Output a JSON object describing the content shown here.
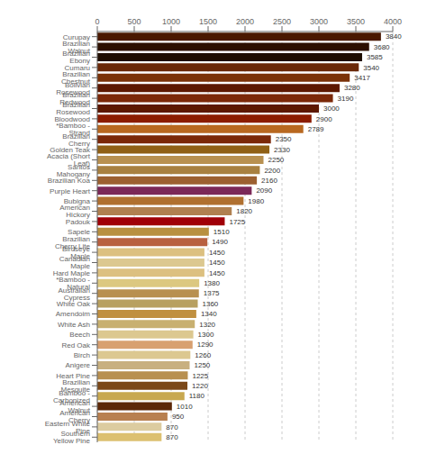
{
  "chart_data": {
    "type": "bar",
    "orientation": "horizontal",
    "categories": [
      "Curupay",
      "Brazilian Walnut",
      "Brazilian Ebony",
      "Cumaru",
      "Brazilian Chestnut",
      "Bolivian Rosewood",
      "Brazilian Redwood",
      "Brazilian Rosewood",
      "Bloodwood",
      "*Bamboo - Strand",
      "Brazilian Cherry",
      "Golden Teak",
      "Acacia (Short Leaf)",
      "Santos Mahogany",
      "Brazilian Koa",
      "Purple Heart",
      "Bubigna",
      "American Hickory",
      "Padouk",
      "Sapele",
      "Brazilian Cherry Lite",
      "Birdseye Maple",
      "Canadian Maple",
      "Hard Maple",
      "*Bamboo - Natural",
      "Australian Cypress",
      "White Oak",
      "Amendoim",
      "White Ash",
      "Beech",
      "Red Oak",
      "Birch",
      "Anigere",
      "Heart Pine",
      "Brazilian Mesquite",
      "Bamboo - Carbonized",
      "American Walnut",
      "American Cherry",
      "Eastern White Pine",
      "Southern Yellow Pine"
    ],
    "values": [
      3840,
      3680,
      3585,
      3540,
      3417,
      3280,
      3190,
      3000,
      2900,
      2789,
      2350,
      2330,
      2250,
      2200,
      2160,
      2090,
      1980,
      1820,
      1725,
      1510,
      1490,
      1450,
      1450,
      1450,
      1380,
      1375,
      1360,
      1340,
      1320,
      1300,
      1290,
      1260,
      1250,
      1225,
      1220,
      1180,
      1010,
      950,
      870,
      870
    ],
    "colors": [
      "#4a1800",
      "#2d1000",
      "#1e0d00",
      "#6a2808",
      "#7b3208",
      "#5c1800",
      "#7b2808",
      "#5c1800",
      "#8b1c00",
      "#b86820",
      "#7b2808",
      "#906015",
      "#b89050",
      "#a88040",
      "#9c6030",
      "#7b2858",
      "#b07030",
      "#b08050",
      "#a00008",
      "#b89040",
      "#b86040",
      "#dcc080",
      "#dcc890",
      "#dcc080",
      "#dcc880",
      "#b89050",
      "#b8a060",
      "#c09040",
      "#c8b070",
      "#dcc890",
      "#d8a070",
      "#dcc890",
      "#c8b080",
      "#b89050",
      "#7b4818",
      "#c8a850",
      "#5c2808",
      "#b88050",
      "#dccca0",
      "#dcc070"
    ],
    "xlim": [
      0,
      4000
    ],
    "xticks": [
      0,
      500,
      1000,
      1500,
      2000,
      2500,
      3000,
      3500,
      4000
    ],
    "grid": true,
    "data_labels": true
  }
}
